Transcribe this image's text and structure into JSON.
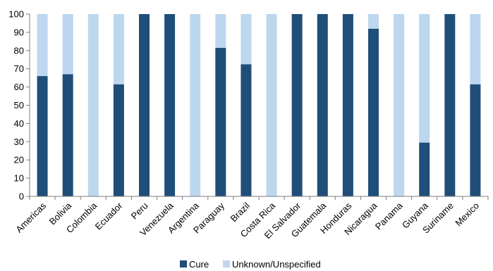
{
  "colors": {
    "cure": "#1f4e79",
    "unknown": "#bdd7ee",
    "axis": "#7f7f7f"
  },
  "chart_data": {
    "type": "bar",
    "stacked": true,
    "title": "",
    "xlabel": "",
    "ylabel": "",
    "ylim": [
      0,
      100
    ],
    "yticks": [
      0,
      10,
      20,
      30,
      40,
      50,
      60,
      70,
      80,
      90,
      100
    ],
    "grid": false,
    "legend_position": "bottom",
    "categories": [
      "Americas",
      "Bolivia",
      "Colombia",
      "Ecuador",
      "Peru",
      "Venezuela",
      "Argentina",
      "Paraguay",
      "Brazil",
      "Costa Rica",
      "El Salvador",
      "Guatemala",
      "Honduras",
      "Nicaragua",
      "Panama",
      "Guyana",
      "Suriname",
      "Mexico"
    ],
    "series": [
      {
        "name": "Cure",
        "values": [
          66,
          67,
          0,
          61.5,
          100,
          100,
          0,
          81.5,
          72.5,
          0,
          100,
          100,
          100,
          92,
          0,
          29.5,
          100,
          61.5
        ]
      },
      {
        "name": "Unknown/Unspecified",
        "values": [
          34,
          33,
          100,
          38.5,
          0,
          0,
          100,
          18.5,
          27.5,
          100,
          0,
          0,
          0,
          8,
          100,
          70.5,
          0,
          38.5
        ]
      }
    ]
  }
}
